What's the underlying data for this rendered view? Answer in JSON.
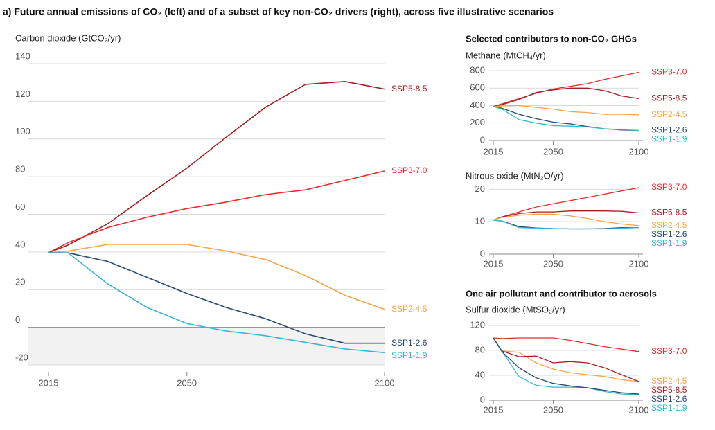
{
  "title": "a) Future annual emissions of CO₂ (left) and of a subset of key non-CO₂ drivers (right), across five illustrative scenarios",
  "chart_data": [
    {
      "type": "line",
      "y_label": "Carbon dioxide (GtCO₂/yr)",
      "x": [
        2015,
        2020,
        2030,
        2040,
        2050,
        2060,
        2070,
        2080,
        2090,
        2100
      ],
      "xlim": [
        2015,
        2100
      ],
      "xticks": [
        2015,
        2050,
        2100
      ],
      "ylim": [
        -20,
        140
      ],
      "yticks": [
        -20,
        0,
        20,
        40,
        60,
        80,
        100,
        120,
        140
      ],
      "grid": true,
      "series": [
        {
          "name": "SSP5-8.5",
          "color": "#a31f22",
          "values": [
            39.6,
            43.7,
            55,
            70,
            84.5,
            101,
            117,
            129,
            130.5,
            126.5
          ]
        },
        {
          "name": "SSP3-7.0",
          "color": "#e32d2d",
          "values": [
            39.6,
            45,
            53,
            58.5,
            63,
            66.5,
            70.5,
            73,
            78,
            83
          ]
        },
        {
          "name": "SSP2-4.5",
          "color": "#f4a548",
          "values": [
            39.6,
            40.5,
            44,
            44,
            44,
            40.5,
            36,
            27.5,
            17,
            9.5
          ]
        },
        {
          "name": "SSP1-2.6",
          "color": "#274a6e",
          "values": [
            39.6,
            39.5,
            35,
            26.5,
            18,
            10.5,
            4.5,
            -3.5,
            -8.5,
            -8.5
          ]
        },
        {
          "name": "SSP1-1.9",
          "color": "#36b6d6",
          "values": [
            39.6,
            39.5,
            23,
            10.5,
            2,
            -2,
            -4.5,
            -8,
            -11.5,
            -13.5
          ]
        }
      ]
    },
    {
      "type": "line",
      "heading": "Selected contributors to non-CO₂ GHGs",
      "y_label": "Methane (MtCH₄/yr)",
      "x": [
        2015,
        2020,
        2030,
        2040,
        2050,
        2060,
        2070,
        2080,
        2090,
        2100
      ],
      "xlim": [
        2015,
        2100
      ],
      "xticks": [
        2015,
        2050,
        2100
      ],
      "ylim": [
        0,
        800
      ],
      "yticks": [
        0,
        200,
        400,
        600,
        800
      ],
      "grid": true,
      "series": [
        {
          "name": "SSP3-7.0",
          "color": "#e32d2d",
          "values": [
            390,
            420,
            480,
            540,
            590,
            620,
            650,
            700,
            740,
            780
          ]
        },
        {
          "name": "SSP5-8.5",
          "color": "#a31f22",
          "values": [
            390,
            410,
            470,
            550,
            580,
            600,
            600,
            570,
            510,
            480
          ]
        },
        {
          "name": "SSP2-4.5",
          "color": "#f4a548",
          "values": [
            390,
            395,
            400,
            380,
            360,
            330,
            320,
            300,
            300,
            295
          ]
        },
        {
          "name": "SSP1-2.6",
          "color": "#274a6e",
          "values": [
            390,
            370,
            300,
            250,
            210,
            190,
            160,
            135,
            120,
            115
          ]
        },
        {
          "name": "SSP1-1.9",
          "color": "#36b6d6",
          "values": [
            390,
            360,
            240,
            200,
            170,
            165,
            155,
            135,
            125,
            115
          ]
        }
      ]
    },
    {
      "type": "line",
      "y_label": "Nitrous oxide (MtN₂O/yr)",
      "x": [
        2015,
        2020,
        2030,
        2040,
        2050,
        2060,
        2070,
        2080,
        2090,
        2100
      ],
      "xlim": [
        2015,
        2100
      ],
      "xticks": [
        2015,
        2050,
        2100
      ],
      "ylim": [
        0,
        22
      ],
      "yticks": [
        0,
        10,
        20
      ],
      "grid": true,
      "series": [
        {
          "name": "SSP3-7.0",
          "color": "#e32d2d",
          "values": [
            10.5,
            11.5,
            13,
            14.5,
            15.5,
            16.5,
            17.5,
            18.5,
            19.5,
            20.5
          ]
        },
        {
          "name": "SSP5-8.5",
          "color": "#a31f22",
          "values": [
            10.5,
            11.5,
            12.5,
            13,
            13,
            13.3,
            13.3,
            13.3,
            13.2,
            12.7
          ]
        },
        {
          "name": "SSP2-4.5",
          "color": "#f4a548",
          "values": [
            10.5,
            11.3,
            12,
            12.3,
            12.3,
            11.8,
            11,
            10,
            9.3,
            8.8
          ]
        },
        {
          "name": "SSP1-2.6",
          "color": "#274a6e",
          "values": [
            10.5,
            10.2,
            8.5,
            8.1,
            7.9,
            7.8,
            7.8,
            7.9,
            8.2,
            8.2
          ]
        },
        {
          "name": "SSP1-1.9",
          "color": "#36b6d6",
          "values": [
            10.5,
            10.2,
            8.2,
            8,
            7.9,
            7.8,
            7.8,
            7.8,
            8,
            8.2
          ]
        }
      ]
    },
    {
      "type": "line",
      "heading": "One air pollutant and contributor to aerosols",
      "y_label": "Sulfur dioxide (MtSO₂/yr)",
      "x": [
        2015,
        2020,
        2030,
        2040,
        2050,
        2060,
        2070,
        2080,
        2090,
        2100
      ],
      "xlim": [
        2015,
        2100
      ],
      "xticks": [
        2015,
        2050,
        2100
      ],
      "ylim": [
        0,
        120
      ],
      "yticks": [
        0,
        40,
        80,
        120
      ],
      "grid": true,
      "series": [
        {
          "name": "SSP3-7.0",
          "color": "#e32d2d",
          "values": [
            100,
            99,
            100,
            100,
            100,
            96,
            91,
            86,
            82,
            78
          ]
        },
        {
          "name": "SSP2-4.5",
          "color": "#f4a548",
          "values": [
            100,
            79,
            77,
            60,
            50,
            44,
            41,
            38,
            33,
            30
          ]
        },
        {
          "name": "SSP5-8.5",
          "color": "#a31f22",
          "values": [
            100,
            79,
            70,
            71,
            60,
            62,
            60,
            52,
            41,
            30
          ]
        },
        {
          "name": "SSP1-1.9",
          "color": "#36b6d6",
          "values": [
            100,
            79,
            38,
            24,
            21,
            21,
            20,
            14,
            10,
            9
          ]
        },
        {
          "name": "SSP1-2.6",
          "color": "#274a6e",
          "values": [
            100,
            78,
            52,
            36,
            27,
            23,
            20,
            16,
            12,
            10
          ]
        }
      ]
    }
  ]
}
